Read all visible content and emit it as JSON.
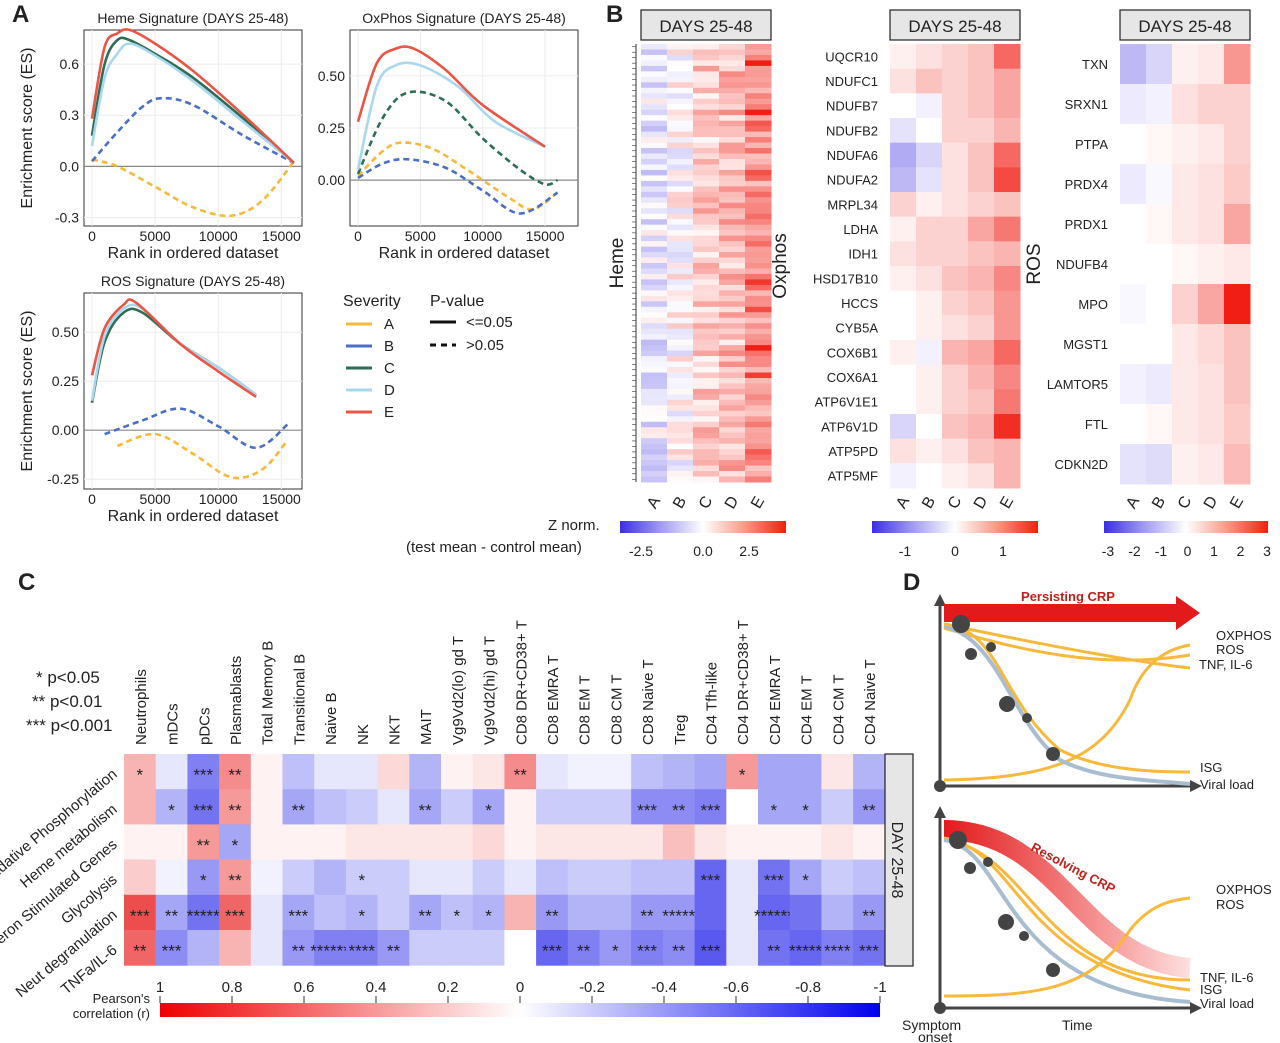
{
  "panel_labels": {
    "A": "A",
    "B": "B",
    "C": "C",
    "D": "D"
  },
  "legend": {
    "severity_title": "Severity",
    "pvalue_title": "P-value",
    "severity": [
      {
        "label": "A",
        "color": "#f6b93b"
      },
      {
        "label": "B",
        "color": "#4a6fc4"
      },
      {
        "label": "C",
        "color": "#2e6e54"
      },
      {
        "label": "D",
        "color": "#a9d8ee"
      },
      {
        "label": "E",
        "color": "#ea5545"
      }
    ],
    "pvalue": [
      {
        "label": "<=0.05",
        "style": "solid"
      },
      {
        "label": ">0.05",
        "style": "dashed"
      }
    ]
  },
  "heatmap_legend_1": {
    "title1": "Z norm.",
    "title2": "(test mean - control mean)",
    "ticks": [
      "-2.5",
      "0.0",
      "2.5"
    ]
  },
  "heatmap_legend_2": {
    "ticks": [
      "-1",
      "0",
      "1"
    ]
  },
  "heatmap_legend_3": {
    "ticks": [
      "-3",
      "-2",
      "-1",
      "0",
      "1",
      "2",
      "3"
    ]
  },
  "sig_legend": [
    "*  p<0.05",
    "** p<0.01",
    "*** p<0.001"
  ],
  "panel_c": {
    "strip": "DAY 25-48",
    "colorbar_label1": "Pearson's",
    "colorbar_label2": "correlation (r)",
    "colorbar_ticks": [
      "1",
      "0.8",
      "0.6",
      "0.4",
      "0.2",
      "0",
      "-0.2",
      "-0.4",
      "-0.6",
      "-0.8",
      "-1"
    ]
  },
  "panel_d": {
    "top_label": "Persisting CRP",
    "bottom_label": "Resolving CRP",
    "top_right": [
      "OXPHOS",
      "ROS",
      "TNF, IL-6",
      "ISG",
      "Viral load"
    ],
    "bottom_right": [
      "OXPHOS",
      "ROS",
      "TNF, IL-6",
      "ISG",
      "Viral load"
    ],
    "x_left1": "Symptom",
    "x_left2": "onset",
    "x_right": "Time"
  },
  "chart_data": [
    {
      "type": "line",
      "title": "Heme Signature (DAYS 25-48)",
      "xlabel": "Rank in ordered dataset",
      "ylabel": "Enrichment score (ES)",
      "xlim": [
        0,
        16000
      ],
      "ylim": [
        -0.35,
        0.8
      ],
      "xticks": [
        "0",
        "5000",
        "10000",
        "15000"
      ],
      "yticks": [
        "0.6",
        "0.3",
        "0.0",
        "-0.3"
      ],
      "series": [
        {
          "name": "A",
          "dashed": true,
          "x": [
            0,
            2000,
            5000,
            8000,
            11000,
            13500,
            16000
          ],
          "y": [
            0.04,
            0.0,
            -0.12,
            -0.24,
            -0.29,
            -0.2,
            0.03
          ]
        },
        {
          "name": "B",
          "dashed": true,
          "x": [
            0,
            2000,
            4000,
            5500,
            8000,
            12000,
            16000
          ],
          "y": [
            0.03,
            0.2,
            0.35,
            0.4,
            0.36,
            0.18,
            0.02
          ]
        },
        {
          "name": "C",
          "dashed": false,
          "x": [
            0,
            1000,
            2000,
            3000,
            5000,
            8000,
            12000,
            16000
          ],
          "y": [
            0.18,
            0.6,
            0.74,
            0.74,
            0.66,
            0.52,
            0.28,
            0.02
          ]
        },
        {
          "name": "D",
          "dashed": false,
          "x": [
            0,
            1000,
            2000,
            3000,
            5000,
            8000,
            12000,
            16000
          ],
          "y": [
            0.12,
            0.52,
            0.66,
            0.72,
            0.65,
            0.5,
            0.26,
            0.02
          ]
        },
        {
          "name": "E",
          "dashed": false,
          "x": [
            0,
            1000,
            2000,
            3000,
            5000,
            8000,
            12000,
            16000
          ],
          "y": [
            0.28,
            0.7,
            0.78,
            0.8,
            0.72,
            0.56,
            0.3,
            0.02
          ]
        }
      ]
    },
    {
      "type": "line",
      "title": "OxPhos Signature (DAYS 25-48)",
      "xlabel": "Rank in ordered dataset",
      "ylabel": "",
      "xlim": [
        0,
        17000
      ],
      "ylim": [
        -0.22,
        0.72
      ],
      "xticks": [
        "0",
        "5000",
        "10000",
        "15000"
      ],
      "yticks": [
        "0.50",
        "0.25",
        "0.00"
      ],
      "series": [
        {
          "name": "A",
          "dashed": true,
          "x": [
            0,
            2000,
            3500,
            6000,
            9000,
            12000,
            14000,
            16000
          ],
          "y": [
            0.02,
            0.14,
            0.18,
            0.15,
            0.04,
            -0.08,
            -0.14,
            -0.06
          ]
        },
        {
          "name": "B",
          "dashed": true,
          "x": [
            0,
            2000,
            4000,
            7000,
            10000,
            13000,
            16000
          ],
          "y": [
            0.01,
            0.08,
            0.1,
            0.06,
            -0.05,
            -0.16,
            -0.06
          ]
        },
        {
          "name": "C",
          "dashed": true,
          "x": [
            0,
            2000,
            4000,
            7000,
            10000,
            13000,
            15000,
            16000
          ],
          "y": [
            0.03,
            0.3,
            0.42,
            0.38,
            0.2,
            0.05,
            -0.02,
            0.0
          ]
        },
        {
          "name": "D",
          "dashed": false,
          "x": [
            0,
            1500,
            3000,
            5000,
            8000,
            11000,
            15000
          ],
          "y": [
            0.05,
            0.45,
            0.55,
            0.55,
            0.45,
            0.28,
            0.16
          ]
        },
        {
          "name": "E",
          "dashed": false,
          "x": [
            0,
            1500,
            3000,
            4500,
            7000,
            10000,
            15000
          ],
          "y": [
            0.28,
            0.56,
            0.63,
            0.63,
            0.53,
            0.36,
            0.16
          ]
        }
      ]
    },
    {
      "type": "line",
      "title": "ROS Signature (DAYS 25-48)",
      "xlabel": "Rank in ordered dataset",
      "ylabel": "Enrichment score (ES)",
      "xlim": [
        0,
        16000
      ],
      "ylim": [
        -0.3,
        0.7
      ],
      "xticks": [
        "0",
        "5000",
        "10000",
        "15000"
      ],
      "yticks": [
        "0.50",
        "0.25",
        "0.00",
        "-0.25"
      ],
      "series": [
        {
          "name": "A",
          "dashed": true,
          "x": [
            2000,
            5000,
            8000,
            11000,
            13500,
            15500
          ],
          "y": [
            -0.08,
            -0.02,
            -0.12,
            -0.24,
            -0.2,
            -0.05
          ]
        },
        {
          "name": "B",
          "dashed": true,
          "x": [
            1000,
            4000,
            7000,
            10000,
            13000,
            15500
          ],
          "y": [
            -0.02,
            0.05,
            0.11,
            0.02,
            -0.09,
            0.03
          ]
        },
        {
          "name": "C",
          "dashed": false,
          "x": [
            0,
            1000,
            2500,
            4000,
            7000,
            10000,
            13000
          ],
          "y": [
            0.14,
            0.45,
            0.6,
            0.6,
            0.44,
            0.32,
            0.18
          ]
        },
        {
          "name": "D",
          "dashed": false,
          "x": [
            0,
            1000,
            2500,
            4000,
            7000,
            10000,
            13000
          ],
          "y": [
            0.15,
            0.48,
            0.62,
            0.62,
            0.44,
            0.32,
            0.18
          ]
        },
        {
          "name": "E",
          "dashed": false,
          "x": [
            0,
            1000,
            2500,
            3500,
            7000,
            10000,
            13000
          ],
          "y": [
            0.28,
            0.52,
            0.64,
            0.65,
            0.44,
            0.3,
            0.17
          ]
        }
      ]
    },
    {
      "type": "heatmap",
      "title": "DAYS 25-48",
      "ylabel": "Heme",
      "columns": [
        "A",
        "B",
        "C",
        "D",
        "E"
      ],
      "rows": 80,
      "scale": [
        -4,
        4
      ],
      "col_means": [
        -0.4,
        0.1,
        1.0,
        1.2,
        1.9
      ]
    },
    {
      "type": "heatmap",
      "title": "DAYS 25-48",
      "ylabel": "Oxphos",
      "columns": [
        "A",
        "B",
        "C",
        "D",
        "E"
      ],
      "scale": [
        -1.5,
        1.5
      ],
      "rows": [
        "UQCR10",
        "NDUFC1",
        "NDUFB7",
        "NDUFB2",
        "NDUFA6",
        "NDUFA2",
        "MRPL34",
        "LDHA",
        "IDH1",
        "HSD17B10",
        "HCCS",
        "CYB5A",
        "COX6B1",
        "COX6A1",
        "ATP6V1E1",
        "ATP6V1D",
        "ATP5PD",
        "ATP5MF"
      ],
      "values": [
        [
          0.1,
          0.2,
          0.3,
          0.4,
          1.0
        ],
        [
          0.2,
          0.4,
          0.3,
          0.4,
          0.6
        ],
        [
          0.0,
          -0.1,
          0.3,
          0.4,
          0.6
        ],
        [
          -0.2,
          0.0,
          0.3,
          0.3,
          0.5
        ],
        [
          -0.6,
          -0.3,
          0.2,
          0.4,
          1.0
        ],
        [
          -0.5,
          -0.2,
          0.2,
          0.4,
          1.2
        ],
        [
          0.3,
          0.1,
          0.2,
          0.3,
          0.4
        ],
        [
          0.1,
          0.3,
          0.3,
          0.6,
          0.9
        ],
        [
          0.2,
          0.3,
          0.3,
          0.4,
          0.5
        ],
        [
          0.1,
          0.2,
          0.4,
          0.5,
          0.8
        ],
        [
          0.0,
          0.1,
          0.3,
          0.4,
          0.7
        ],
        [
          0.0,
          0.1,
          0.2,
          0.3,
          0.7
        ],
        [
          0.1,
          -0.1,
          0.5,
          0.6,
          1.0
        ],
        [
          0.0,
          0.1,
          0.3,
          0.5,
          0.8
        ],
        [
          0.0,
          0.1,
          0.3,
          0.4,
          0.9
        ],
        [
          -0.3,
          0.0,
          0.4,
          0.5,
          1.4
        ],
        [
          0.2,
          0.1,
          0.2,
          0.4,
          0.5
        ],
        [
          -0.1,
          0.0,
          0.1,
          0.2,
          0.5
        ]
      ]
    },
    {
      "type": "heatmap",
      "title": "DAYS 25-48",
      "ylabel": "ROS",
      "columns": [
        "A",
        "B",
        "C",
        "D",
        "E"
      ],
      "scale": [
        -3,
        3
      ],
      "rows": [
        "TXN",
        "SRXN1",
        "PTPA",
        "PRDX4",
        "PRDX1",
        "NDUFB4",
        "MPO",
        "MGST1",
        "LAMTOR5",
        "FTL",
        "CDKN2D"
      ],
      "values": [
        [
          -1.0,
          -0.6,
          0.2,
          0.3,
          1.4
        ],
        [
          -0.3,
          -0.2,
          0.4,
          0.6,
          0.6
        ],
        [
          0.0,
          0.1,
          0.2,
          0.3,
          0.6
        ],
        [
          -0.3,
          -0.1,
          0.3,
          0.4,
          0.7
        ],
        [
          0.0,
          0.1,
          0.3,
          0.4,
          1.2
        ],
        [
          0.0,
          0.0,
          0.1,
          0.2,
          0.3
        ],
        [
          -0.1,
          0.0,
          0.6,
          1.2,
          3.0
        ],
        [
          0.0,
          0.0,
          0.3,
          0.5,
          0.8
        ],
        [
          -0.2,
          -0.3,
          0.3,
          0.4,
          0.8
        ],
        [
          0.0,
          0.1,
          0.3,
          0.4,
          0.7
        ],
        [
          -0.4,
          -0.5,
          0.2,
          0.3,
          0.9
        ]
      ]
    },
    {
      "type": "heatmap",
      "title": "",
      "columns": [
        "Neutrophils",
        "mDCs",
        "pDCs",
        "Plasmablasts",
        "Total Memory B",
        "Transitional B",
        "Naive B",
        "NK",
        "NKT",
        "MAIT",
        "Vg9Vd2(lo) gd T",
        "Vg9Vd2(hi) gd T",
        "CD8 DR+CD38+ T",
        "CD8 EMRA T",
        "CD8 EM T",
        "CD8 CM T",
        "CD8 Naive T",
        "Treg",
        "CD4 Tfh-like",
        "CD4 DR+CD38+ T",
        "CD4 EMRA T",
        "CD4 EM T",
        "CD4 CM T",
        "CD4 Naive T"
      ],
      "rows": [
        "Oxidative Phosphorylation",
        "Heme metabolism",
        "Interferon Stimulated Genes",
        "Glycolysis",
        "Neut degranulation",
        "TNFa/IL-6"
      ],
      "scale": [
        -1,
        1
      ],
      "values": [
        [
          0.3,
          -0.1,
          -0.5,
          0.45,
          0.05,
          -0.25,
          -0.1,
          -0.1,
          0.15,
          -0.3,
          0.05,
          0.1,
          0.45,
          -0.1,
          -0.05,
          -0.05,
          -0.25,
          -0.3,
          -0.35,
          0.4,
          -0.35,
          -0.35,
          0.1,
          -0.3
        ],
        [
          0.3,
          -0.3,
          -0.55,
          0.4,
          0.05,
          -0.35,
          -0.25,
          -0.2,
          -0.1,
          -0.35,
          -0.2,
          -0.35,
          0.05,
          -0.2,
          -0.2,
          -0.2,
          -0.45,
          -0.45,
          -0.5,
          0.0,
          -0.35,
          -0.35,
          -0.2,
          -0.4
        ],
        [
          0.05,
          0.05,
          0.4,
          -0.35,
          0.05,
          0.05,
          0.05,
          0.1,
          0.1,
          0.1,
          0.1,
          0.15,
          0.05,
          0.1,
          0.1,
          0.1,
          0.1,
          0.25,
          0.1,
          0.05,
          0.05,
          0.05,
          0.1,
          0.05
        ],
        [
          0.2,
          -0.05,
          -0.4,
          0.4,
          -0.05,
          -0.2,
          -0.3,
          -0.2,
          -0.2,
          -0.1,
          -0.1,
          -0.2,
          -0.1,
          -0.25,
          -0.2,
          -0.2,
          -0.25,
          -0.25,
          -0.6,
          -0.1,
          -0.55,
          -0.35,
          -0.2,
          -0.25
        ],
        [
          0.7,
          -0.35,
          -0.55,
          0.6,
          -0.1,
          -0.35,
          -0.25,
          -0.3,
          -0.2,
          -0.35,
          -0.25,
          -0.3,
          0.3,
          -0.4,
          -0.3,
          -0.3,
          -0.4,
          -0.4,
          -0.6,
          -0.1,
          -0.6,
          -0.55,
          -0.3,
          -0.4
        ],
        [
          0.6,
          -0.45,
          -0.3,
          0.3,
          -0.1,
          -0.4,
          -0.5,
          -0.5,
          -0.4,
          -0.2,
          -0.2,
          -0.2,
          0.0,
          -0.6,
          -0.5,
          -0.4,
          -0.5,
          -0.45,
          -0.65,
          -0.1,
          -0.55,
          -0.6,
          -0.5,
          -0.55
        ]
      ],
      "stars": [
        [
          "*",
          "",
          "***",
          "**",
          "",
          "",
          "",
          "",
          "",
          "",
          "",
          "",
          "**",
          "",
          "",
          "",
          "",
          "",
          "",
          "*",
          "",
          "",
          "",
          ""
        ],
        [
          "",
          "*",
          "***",
          "**",
          "",
          "**",
          "",
          "",
          "",
          "**",
          "",
          "*",
          "",
          "",
          "",
          "",
          "***",
          "**",
          "***",
          "",
          "*",
          "*",
          "",
          "**"
        ],
        [
          "",
          "",
          "**",
          "*",
          "",
          "",
          "",
          "",
          "",
          "",
          "",
          "",
          "",
          "",
          "",
          "",
          "",
          "",
          "",
          "",
          "",
          "",
          "",
          ""
        ],
        [
          "",
          "",
          "*",
          "**",
          "",
          "",
          "",
          "*",
          "",
          "",
          "",
          "",
          "",
          "",
          "",
          "",
          "",
          "",
          "***",
          "",
          "***",
          "*",
          "",
          ""
        ],
        [
          "***",
          "**",
          "*****",
          "***",
          "",
          "***",
          "",
          "*",
          "",
          "**",
          "*",
          "*",
          "",
          "**",
          "",
          "",
          "**",
          "*****",
          "",
          "",
          "******",
          "",
          "",
          "**"
        ],
        [
          "**",
          "***",
          "",
          "",
          "",
          "**",
          "******",
          "****",
          "**",
          "",
          "",
          "",
          "",
          "***",
          "**",
          "*",
          "***",
          "**",
          "***",
          "",
          "**",
          "*****",
          "****",
          "***"
        ]
      ]
    }
  ]
}
